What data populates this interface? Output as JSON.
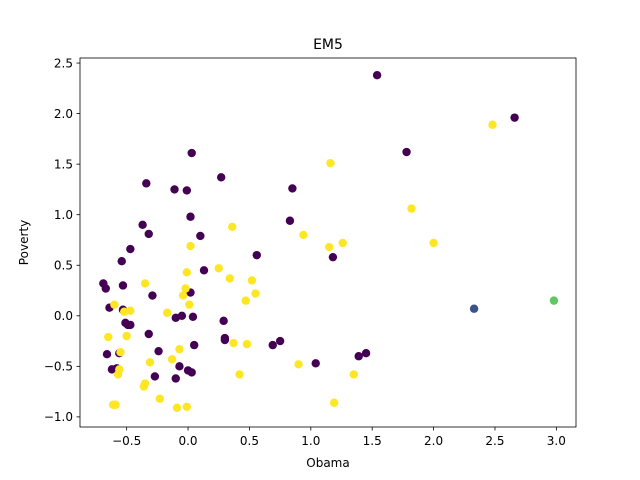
{
  "chart_data": {
    "type": "scatter",
    "title": "EM5",
    "xlabel": "Obama",
    "ylabel": "Poverty",
    "xlim": [
      -0.88,
      3.16
    ],
    "ylim": [
      -1.1,
      2.55
    ],
    "grid": false,
    "legend": "none",
    "x_ticks": [
      -0.5,
      0.0,
      0.5,
      1.0,
      1.5,
      2.0,
      2.5,
      3.0
    ],
    "x_tick_labels": [
      "−0.5",
      "0.0",
      "0.5",
      "1.0",
      "1.5",
      "2.0",
      "2.5",
      "3.0"
    ],
    "y_ticks": [
      -1.0,
      -0.5,
      0.0,
      0.5,
      1.0,
      1.5,
      2.0,
      2.5
    ],
    "y_tick_labels": [
      "−1.0",
      "−0.5",
      "0.0",
      "0.5",
      "1.0",
      "1.5",
      "2.0",
      "2.5"
    ],
    "series": [
      {
        "color": "#440154",
        "points": [
          [
            -0.69,
            0.32
          ],
          [
            -0.67,
            0.27
          ],
          [
            -0.66,
            -0.38
          ],
          [
            -0.64,
            0.08
          ],
          [
            -0.62,
            -0.53
          ],
          [
            -0.58,
            -0.52
          ],
          [
            -0.56,
            -0.37
          ],
          [
            -0.54,
            0.54
          ],
          [
            -0.53,
            0.3
          ],
          [
            -0.53,
            0.06
          ],
          [
            -0.51,
            -0.07
          ],
          [
            -0.49,
            -0.09
          ],
          [
            -0.47,
            -0.09
          ],
          [
            -0.47,
            0.66
          ],
          [
            -0.37,
            0.9
          ],
          [
            -0.34,
            1.31
          ],
          [
            -0.32,
            0.81
          ],
          [
            -0.32,
            -0.18
          ],
          [
            -0.29,
            0.2
          ],
          [
            -0.27,
            -0.6
          ],
          [
            -0.24,
            -0.35
          ],
          [
            -0.11,
            1.25
          ],
          [
            -0.1,
            -0.02
          ],
          [
            -0.1,
            -0.62
          ],
          [
            -0.07,
            -0.5
          ],
          [
            -0.05,
            0.0
          ],
          [
            -0.01,
            1.24
          ],
          [
            0.0,
            -0.54
          ],
          [
            0.02,
            0.23
          ],
          [
            0.02,
            0.98
          ],
          [
            0.03,
            1.61
          ],
          [
            0.03,
            -0.56
          ],
          [
            0.04,
            -0.01
          ],
          [
            0.05,
            -0.29
          ],
          [
            0.1,
            0.79
          ],
          [
            0.13,
            0.45
          ],
          [
            0.27,
            1.37
          ],
          [
            0.29,
            -0.05
          ],
          [
            0.3,
            -0.22
          ],
          [
            0.3,
            -0.24
          ],
          [
            0.56,
            0.6
          ],
          [
            0.69,
            -0.29
          ],
          [
            0.75,
            -0.25
          ],
          [
            0.83,
            0.94
          ],
          [
            0.85,
            1.26
          ],
          [
            1.04,
            -0.47
          ],
          [
            1.18,
            0.58
          ],
          [
            1.39,
            -0.4
          ],
          [
            1.45,
            -0.37
          ],
          [
            1.54,
            2.38
          ],
          [
            1.78,
            1.62
          ],
          [
            2.66,
            1.96
          ]
        ]
      },
      {
        "color": "#fde725",
        "points": [
          [
            -0.65,
            -0.21
          ],
          [
            -0.61,
            -0.88
          ],
          [
            -0.6,
            0.11
          ],
          [
            -0.59,
            -0.88
          ],
          [
            -0.57,
            -0.58
          ],
          [
            -0.56,
            -0.53
          ],
          [
            -0.55,
            -0.36
          ],
          [
            -0.52,
            0.04
          ],
          [
            -0.5,
            -0.2
          ],
          [
            -0.47,
            0.05
          ],
          [
            -0.36,
            -0.7
          ],
          [
            -0.35,
            0.32
          ],
          [
            -0.35,
            -0.67
          ],
          [
            -0.31,
            -0.46
          ],
          [
            -0.23,
            -0.82
          ],
          [
            -0.17,
            0.03
          ],
          [
            -0.13,
            -0.43
          ],
          [
            -0.09,
            -0.91
          ],
          [
            -0.07,
            -0.33
          ],
          [
            -0.04,
            0.2
          ],
          [
            -0.02,
            0.27
          ],
          [
            -0.01,
            -0.9
          ],
          [
            -0.01,
            0.43
          ],
          [
            0.01,
            0.11
          ],
          [
            0.02,
            0.69
          ],
          [
            0.25,
            0.47
          ],
          [
            0.34,
            0.37
          ],
          [
            0.36,
            0.88
          ],
          [
            0.37,
            -0.27
          ],
          [
            0.42,
            -0.58
          ],
          [
            0.47,
            0.15
          ],
          [
            0.48,
            -0.28
          ],
          [
            0.52,
            0.35
          ],
          [
            0.55,
            0.22
          ],
          [
            0.9,
            -0.48
          ],
          [
            0.94,
            0.8
          ],
          [
            1.15,
            0.68
          ],
          [
            1.16,
            1.51
          ],
          [
            1.19,
            -0.86
          ],
          [
            1.26,
            0.72
          ],
          [
            1.35,
            -0.58
          ],
          [
            1.82,
            1.06
          ],
          [
            2.0,
            0.72
          ],
          [
            2.48,
            1.89
          ]
        ]
      },
      {
        "color": "#3b528b",
        "points": [
          [
            2.33,
            0.07
          ]
        ]
      },
      {
        "color": "#5ec962",
        "points": [
          [
            2.98,
            0.15
          ]
        ]
      }
    ]
  }
}
